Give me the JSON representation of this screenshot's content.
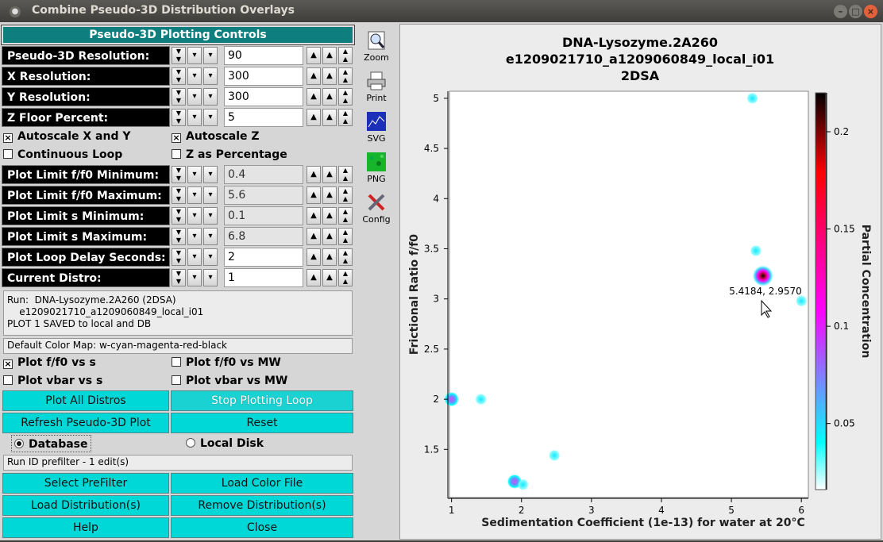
{
  "window": {
    "title": "Combine Pseudo-3D Distribution Overlays",
    "icon": "window-menu-icon"
  },
  "controls": {
    "header": "Pseudo-3D Plotting Controls",
    "counters": [
      {
        "label": "Pseudo-3D Resolution:",
        "value": "90",
        "enabled": true
      },
      {
        "label": "X Resolution:",
        "value": "300",
        "enabled": true
      },
      {
        "label": "Y Resolution:",
        "value": "300",
        "enabled": true
      },
      {
        "label": "Z Floor Percent:",
        "value": "5",
        "enabled": true
      }
    ],
    "checks1": [
      {
        "label": "Autoscale X and Y",
        "checked": true
      },
      {
        "label": "Autoscale Z",
        "checked": true
      },
      {
        "label": "Continuous Loop",
        "checked": false
      },
      {
        "label": "Z as Percentage",
        "checked": false
      }
    ],
    "counters2": [
      {
        "label": "Plot Limit f/f0 Minimum:",
        "value": "0.4",
        "enabled": false
      },
      {
        "label": "Plot Limit f/f0 Maximum:",
        "value": "5.6",
        "enabled": false
      },
      {
        "label": "Plot Limit s Minimum:",
        "value": "0.1",
        "enabled": false
      },
      {
        "label": "Plot Limit s Maximum:",
        "value": "6.8",
        "enabled": false
      },
      {
        "label": "Plot Loop Delay Seconds:",
        "value": "2",
        "enabled": true
      },
      {
        "label": "Current Distro:",
        "value": "1",
        "enabled": true
      }
    ],
    "status_lines": [
      "Run:  DNA-Lysozyme.2A260 (2DSA)",
      "    e1209021710_a1209060849_local_i01",
      "PLOT 1 SAVED to local and DB"
    ],
    "color_map": "Default Color Map: w-cyan-magenta-red-black",
    "checks2": [
      {
        "label": "Plot f/f0 vs s",
        "checked": true
      },
      {
        "label": "Plot f/f0 vs MW",
        "checked": false
      },
      {
        "label": "Plot vbar vs s",
        "checked": false
      },
      {
        "label": "Plot vbar vs MW",
        "checked": false
      }
    ],
    "buttons_a": [
      "Plot All Distros",
      "Stop Plotting Loop",
      "Refresh Pseudo-3D Plot",
      "Reset"
    ],
    "radios": [
      {
        "label": "Database",
        "selected": true
      },
      {
        "label": "Local Disk",
        "selected": false
      }
    ],
    "prefilter": "Run ID prefilter - 1 edit(s)",
    "buttons_b": [
      "Select PreFilter",
      "Load Color File",
      "Load Distribution(s)",
      "Remove Distribution(s)",
      "Help",
      "Close"
    ]
  },
  "tools": [
    {
      "label": "Zoom",
      "icon": "zoom-icon"
    },
    {
      "label": "Print",
      "icon": "printer-icon"
    },
    {
      "label": "SVG",
      "icon": "svg-export-icon"
    },
    {
      "label": "PNG",
      "icon": "png-export-icon"
    },
    {
      "label": "Config",
      "icon": "config-icon"
    }
  ],
  "chart_data": {
    "type": "heatmap",
    "title": [
      "DNA-Lysozyme.2A260",
      "e1209021710_a1209060849_local_i01",
      "2DSA"
    ],
    "xlabel": "Sedimentation Coefficient (1e-13) for water at 20°C",
    "ylabel": "Frictional Ratio f/f0",
    "zlabel": "Partial Concentration",
    "xlim": [
      0.97,
      6.1
    ],
    "ylim": [
      1.02,
      5.07
    ],
    "zlim": [
      0.016,
      0.22
    ],
    "xticks": [
      1,
      2,
      3,
      4,
      5,
      6
    ],
    "yticks": [
      1.5,
      2,
      2.5,
      3,
      3.5,
      4,
      4.5,
      5
    ],
    "zticks": [
      0.05,
      0.1,
      0.15,
      0.2
    ],
    "colormap": [
      "#ffffff",
      "#00ffff",
      "#ff00ff",
      "#ff0000",
      "#000000"
    ],
    "points": [
      {
        "s": 5.3,
        "ff0": 5.0,
        "c": 0.03
      },
      {
        "s": 5.35,
        "ff0": 3.48,
        "c": 0.025
      },
      {
        "s": 5.45,
        "ff0": 3.23,
        "c": 0.22
      },
      {
        "s": 6.0,
        "ff0": 2.98,
        "c": 0.02
      },
      {
        "s": 1.0,
        "ff0": 2.0,
        "c": 0.08
      },
      {
        "s": 1.42,
        "ff0": 2.0,
        "c": 0.015
      },
      {
        "s": 1.9,
        "ff0": 1.18,
        "c": 0.09
      },
      {
        "s": 2.02,
        "ff0": 1.15,
        "c": 0.05
      },
      {
        "s": 2.47,
        "ff0": 1.44,
        "c": 0.015
      }
    ],
    "cursor_readout": "5.4184, 2.9570"
  }
}
